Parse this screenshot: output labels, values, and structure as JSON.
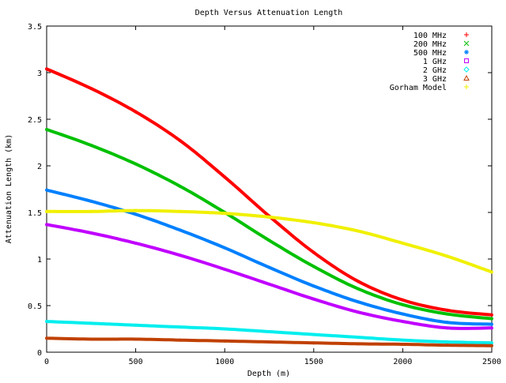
{
  "chart_data": {
    "type": "scatter",
    "title": "Depth Versus Attenuation Length",
    "xlabel": "Depth (m)",
    "ylabel": "Attenuation Length (km)",
    "xlim": [
      0,
      2500
    ],
    "ylim": [
      0,
      3.5
    ],
    "xticks": [
      0,
      500,
      1000,
      1500,
      2000,
      2500
    ],
    "xtick_labels": [
      "0",
      "500",
      "1000",
      "1500",
      "2000",
      "2500"
    ],
    "yticks": [
      0,
      0.5,
      1,
      1.5,
      2,
      2.5,
      3,
      3.5
    ],
    "ytick_labels": [
      "0",
      "0.5",
      "1",
      "1.5",
      "2",
      "2.5",
      "3",
      "3.5"
    ],
    "grid": false,
    "legend_position": "top-right",
    "x": [
      0,
      250,
      500,
      750,
      1000,
      1250,
      1500,
      1750,
      2000,
      2250,
      2500
    ],
    "series": [
      {
        "name": "100 MHz",
        "color": "#ff0000",
        "marker": "+",
        "values": [
          3.04,
          2.83,
          2.58,
          2.27,
          1.88,
          1.46,
          1.07,
          0.76,
          0.56,
          0.45,
          0.4
        ]
      },
      {
        "name": "200 MHz",
        "color": "#00c000",
        "marker": "x",
        "values": [
          2.39,
          2.22,
          2.02,
          1.78,
          1.5,
          1.2,
          0.92,
          0.68,
          0.51,
          0.41,
          0.36
        ]
      },
      {
        "name": "500 MHz",
        "color": "#0080ff",
        "marker": "*",
        "values": [
          1.74,
          1.62,
          1.48,
          1.31,
          1.12,
          0.91,
          0.71,
          0.54,
          0.41,
          0.32,
          0.3
        ]
      },
      {
        "name": "1 GHz",
        "color": "#c000ff",
        "marker": "square",
        "values": [
          1.37,
          1.28,
          1.17,
          1.04,
          0.89,
          0.73,
          0.57,
          0.43,
          0.33,
          0.26,
          0.26
        ]
      },
      {
        "name": "2 GHz",
        "color": "#00eeee",
        "marker": "diamond",
        "values": [
          0.33,
          0.31,
          0.29,
          0.27,
          0.25,
          0.22,
          0.19,
          0.16,
          0.13,
          0.11,
          0.1
        ]
      },
      {
        "name": "3 GHz",
        "color": "#c04000",
        "marker": "triangle",
        "values": [
          0.15,
          0.14,
          0.14,
          0.13,
          0.12,
          0.11,
          0.1,
          0.09,
          0.085,
          0.075,
          0.07
        ]
      },
      {
        "name": "Gorham Model",
        "color": "#f0f000",
        "marker": "+",
        "values": [
          1.51,
          1.51,
          1.52,
          1.51,
          1.49,
          1.45,
          1.39,
          1.3,
          1.17,
          1.03,
          0.86
        ]
      }
    ]
  }
}
